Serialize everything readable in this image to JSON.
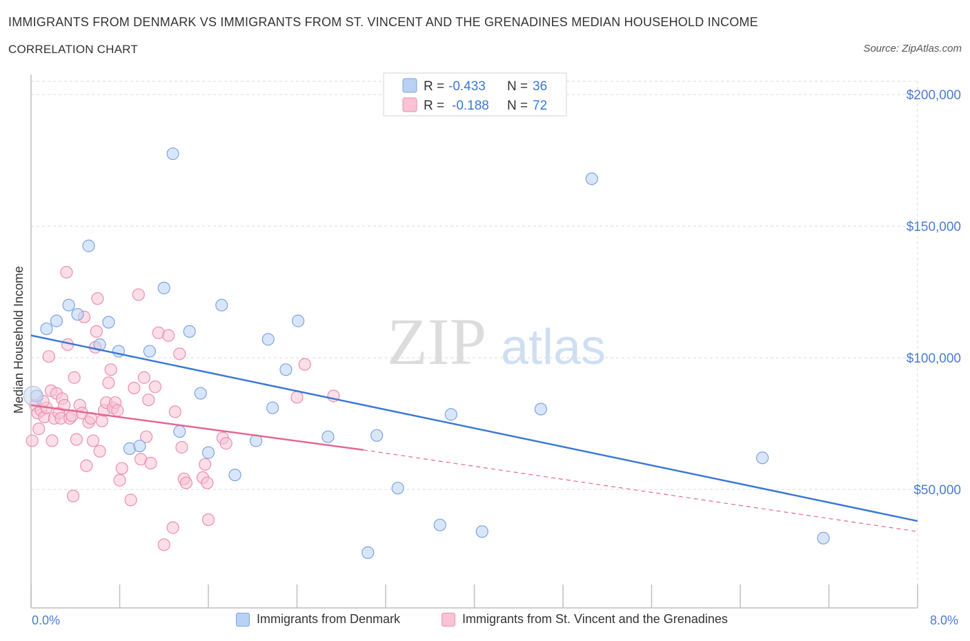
{
  "title": "IMMIGRANTS FROM DENMARK VS IMMIGRANTS FROM ST. VINCENT AND THE GRENADINES MEDIAN HOUSEHOLD INCOME",
  "subtitle": "CORRELATION CHART",
  "source": "Source: ZipAtlas.com",
  "watermark": {
    "zip": "ZIP",
    "atlas": "atlas"
  },
  "colors": {
    "blue_fill": "#b9d1f5",
    "blue_stroke": "#7ba4e0",
    "blue_line": "#3a78d4",
    "pink_fill": "#f8c3d4",
    "pink_stroke": "#ea8fae",
    "pink_line": "#e4678f",
    "axis_text": "#4a7bd0",
    "grid": "#d9d9d9"
  },
  "legend_top": {
    "row1": {
      "r_label": "R = ",
      "r_value": "-0.433",
      "n_label": "N = ",
      "n_value": "36"
    },
    "row2": {
      "r_label": "R = ",
      "r_value": "-0.188",
      "n_label": "N = ",
      "n_value": "72"
    }
  },
  "legend_bottom": {
    "series1": "Immigrants from Denmark",
    "series2": "Immigrants from St. Vincent and the Grenadines"
  },
  "chart_data": {
    "type": "scatter",
    "title": "IMMIGRANTS FROM DENMARK VS IMMIGRANTS FROM ST. VINCENT AND THE GRENADINES MEDIAN HOUSEHOLD INCOME",
    "subtitle": "CORRELATION CHART",
    "ylabel": "Median Household Income",
    "xlabel": "",
    "x_range": [
      0,
      8
    ],
    "y_range": [
      5000,
      205000
    ],
    "x_ticks": [
      {
        "value": 0,
        "label": "0.0%"
      },
      {
        "value": 8,
        "label": "8.0%"
      }
    ],
    "y_ticks": [
      {
        "value": 50000,
        "label": "$50,000"
      },
      {
        "value": 100000,
        "label": "$100,000"
      },
      {
        "value": 150000,
        "label": "$150,000"
      },
      {
        "value": 200000,
        "label": "$200,000"
      }
    ],
    "grid": true,
    "legend_position": "top-center",
    "series": [
      {
        "name": "Immigrants from Denmark",
        "R": -0.433,
        "N": 36,
        "trend": {
          "x": [
            0,
            8
          ],
          "y": [
            108500,
            38000
          ]
        },
        "points": [
          [
            0.05,
            85500
          ],
          [
            0.14,
            111000
          ],
          [
            0.23,
            114000
          ],
          [
            0.34,
            120000
          ],
          [
            0.42,
            116500
          ],
          [
            0.52,
            142500
          ],
          [
            0.62,
            105000
          ],
          [
            0.7,
            113500
          ],
          [
            0.79,
            102500
          ],
          [
            0.89,
            65500
          ],
          [
            0.98,
            66500
          ],
          [
            1.07,
            102500
          ],
          [
            1.2,
            126500
          ],
          [
            1.28,
            177500
          ],
          [
            1.34,
            72000
          ],
          [
            1.43,
            110000
          ],
          [
            1.53,
            86500
          ],
          [
            1.6,
            64000
          ],
          [
            1.72,
            120000
          ],
          [
            1.84,
            55500
          ],
          [
            2.03,
            68500
          ],
          [
            2.14,
            107000
          ],
          [
            2.18,
            81000
          ],
          [
            2.3,
            95500
          ],
          [
            2.41,
            114000
          ],
          [
            2.68,
            70000
          ],
          [
            3.04,
            26000
          ],
          [
            3.12,
            70500
          ],
          [
            3.31,
            50500
          ],
          [
            3.69,
            36500
          ],
          [
            3.79,
            78500
          ],
          [
            4.07,
            34000
          ],
          [
            4.6,
            80500
          ],
          [
            5.06,
            168000
          ],
          [
            6.6,
            62000
          ],
          [
            7.15,
            31500
          ]
        ]
      },
      {
        "name": "Immigrants from St. Vincent and the Grenadines",
        "R": -0.188,
        "N": 72,
        "trend": {
          "x": [
            0,
            3.0
          ],
          "y": [
            82000,
            65000
          ]
        },
        "trend_dashed": {
          "x": [
            3.0,
            8
          ],
          "y": [
            65000,
            34000
          ]
        },
        "points": [
          [
            0.01,
            68500
          ],
          [
            0.04,
            82000
          ],
          [
            0.06,
            79000
          ],
          [
            0.07,
            73000
          ],
          [
            0.09,
            80000
          ],
          [
            0.12,
            77500
          ],
          [
            0.14,
            81000
          ],
          [
            0.16,
            100500
          ],
          [
            0.18,
            87500
          ],
          [
            0.19,
            68500
          ],
          [
            0.21,
            77000
          ],
          [
            0.23,
            86500
          ],
          [
            0.25,
            79000
          ],
          [
            0.27,
            77000
          ],
          [
            0.28,
            84500
          ],
          [
            0.3,
            82000
          ],
          [
            0.32,
            132500
          ],
          [
            0.33,
            105000
          ],
          [
            0.35,
            77000
          ],
          [
            0.37,
            78000
          ],
          [
            0.38,
            47500
          ],
          [
            0.39,
            92500
          ],
          [
            0.41,
            69000
          ],
          [
            0.44,
            82000
          ],
          [
            0.46,
            79000
          ],
          [
            0.48,
            115500
          ],
          [
            0.5,
            59000
          ],
          [
            0.52,
            75500
          ],
          [
            0.54,
            77000
          ],
          [
            0.56,
            68500
          ],
          [
            0.58,
            104000
          ],
          [
            0.59,
            110000
          ],
          [
            0.6,
            122500
          ],
          [
            0.62,
            64500
          ],
          [
            0.64,
            76000
          ],
          [
            0.66,
            80000
          ],
          [
            0.68,
            83000
          ],
          [
            0.7,
            90500
          ],
          [
            0.72,
            95500
          ],
          [
            0.74,
            81000
          ],
          [
            0.76,
            83000
          ],
          [
            0.78,
            80000
          ],
          [
            0.8,
            53500
          ],
          [
            0.82,
            58000
          ],
          [
            0.9,
            46000
          ],
          [
            0.93,
            88500
          ],
          [
            0.97,
            124000
          ],
          [
            0.99,
            61500
          ],
          [
            1.02,
            92500
          ],
          [
            1.04,
            70000
          ],
          [
            1.06,
            84000
          ],
          [
            1.08,
            60000
          ],
          [
            1.12,
            89000
          ],
          [
            1.15,
            109500
          ],
          [
            1.2,
            29000
          ],
          [
            1.24,
            108500
          ],
          [
            1.28,
            35500
          ],
          [
            1.3,
            79500
          ],
          [
            1.34,
            101500
          ],
          [
            1.36,
            66000
          ],
          [
            1.38,
            54000
          ],
          [
            1.4,
            52500
          ],
          [
            1.55,
            54500
          ],
          [
            1.57,
            59500
          ],
          [
            1.59,
            52500
          ],
          [
            1.6,
            38500
          ],
          [
            1.73,
            69500
          ],
          [
            1.76,
            67500
          ],
          [
            2.4,
            85000
          ],
          [
            2.47,
            97500
          ],
          [
            2.73,
            85500
          ],
          [
            0.11,
            83500
          ]
        ]
      }
    ]
  }
}
